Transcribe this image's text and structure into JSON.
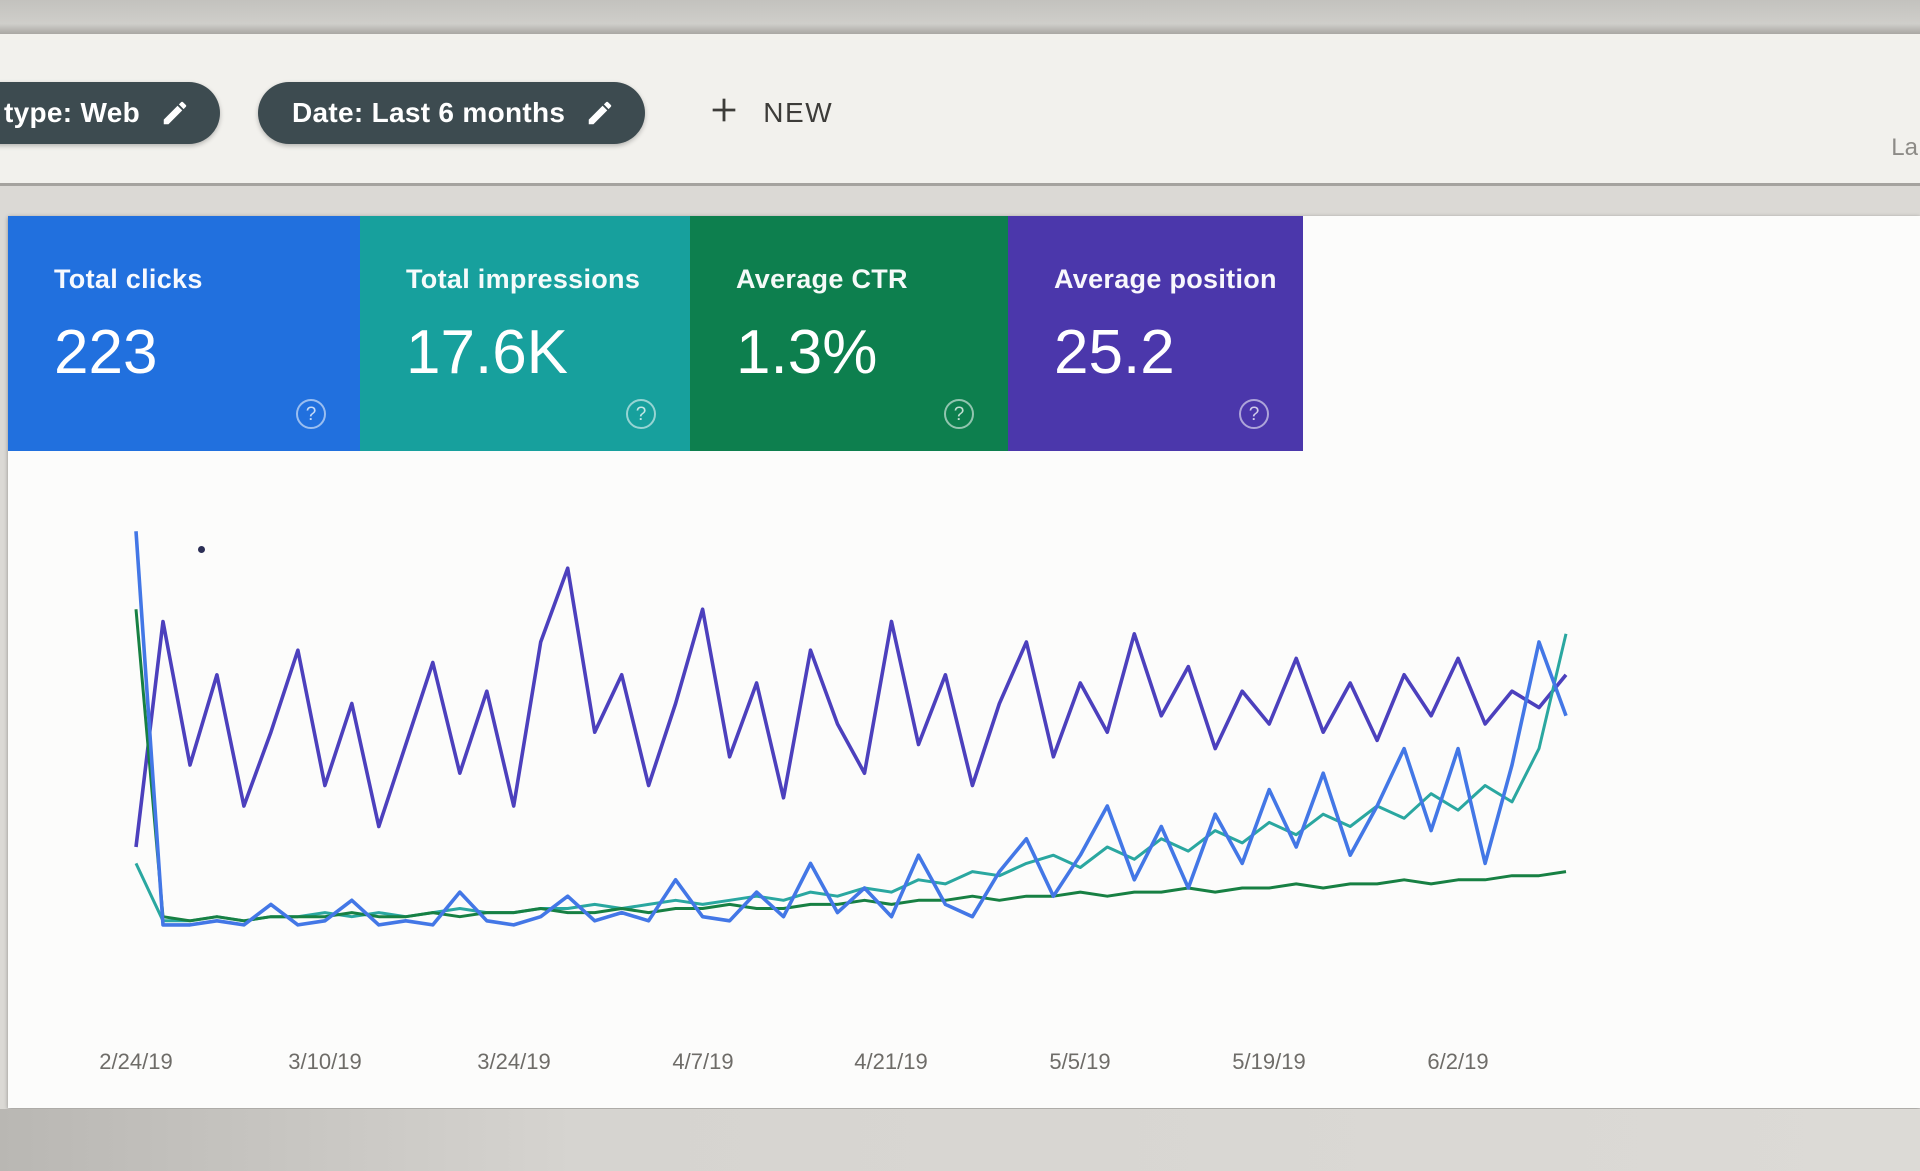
{
  "header": {
    "filter_chips": [
      {
        "label": "type: Web"
      },
      {
        "label": "Date: Last 6 months"
      }
    ],
    "new_button_label": "NEW",
    "right_text_partial": "La"
  },
  "metric_cards": [
    {
      "id": "total-clicks",
      "label": "Total clicks",
      "value": "223",
      "color": "#2170de",
      "help": "?"
    },
    {
      "id": "total-impressions",
      "label": "Total impressions",
      "value": "17.6K",
      "color": "#17a09d",
      "help": "?"
    },
    {
      "id": "average-ctr",
      "label": "Average CTR",
      "value": "1.3%",
      "color": "#0d7f4e",
      "help": "?"
    },
    {
      "id": "average-position",
      "label": "Average position",
      "value": "25.2",
      "color": "#4b37ab",
      "help": "?"
    }
  ],
  "chart_data": {
    "type": "line",
    "x_tick_labels": [
      "2/24/19",
      "3/10/19",
      "3/24/19",
      "4/7/19",
      "4/21/19",
      "5/5/19",
      "5/19/19",
      "6/2/19"
    ],
    "x_tick_indices": [
      0,
      7,
      14,
      21,
      28,
      35,
      42,
      49
    ],
    "ylim": [
      0,
      100
    ],
    "grid": false,
    "legend_position": "none (colored metric cards act as legend)",
    "series": [
      {
        "name": "Clicks",
        "color": "#4377e6",
        "values": [
          97,
          1,
          1,
          2,
          1,
          6,
          1,
          2,
          7,
          1,
          2,
          1,
          9,
          2,
          1,
          3,
          8,
          2,
          4,
          2,
          12,
          3,
          2,
          9,
          3,
          16,
          4,
          10,
          3,
          18,
          6,
          3,
          14,
          22,
          8,
          18,
          30,
          12,
          25,
          10,
          28,
          16,
          34,
          20,
          38,
          18,
          30,
          44,
          24,
          44,
          16,
          40,
          70,
          52
        ]
      },
      {
        "name": "Impressions",
        "color": "#2aa7a0",
        "values": [
          16,
          2,
          2,
          3,
          2,
          3,
          3,
          4,
          3,
          4,
          3,
          4,
          5,
          4,
          4,
          5,
          5,
          6,
          5,
          6,
          7,
          6,
          7,
          8,
          7,
          9,
          8,
          10,
          9,
          12,
          11,
          14,
          13,
          16,
          18,
          15,
          20,
          17,
          22,
          19,
          24,
          21,
          26,
          23,
          28,
          25,
          30,
          27,
          33,
          29,
          35,
          31,
          44,
          72
        ]
      },
      {
        "name": "CTR",
        "color": "#178043",
        "values": [
          78,
          3,
          2,
          3,
          2,
          3,
          3,
          3,
          4,
          3,
          3,
          4,
          3,
          4,
          4,
          5,
          4,
          4,
          5,
          4,
          5,
          5,
          6,
          5,
          5,
          6,
          6,
          7,
          6,
          7,
          7,
          8,
          7,
          8,
          8,
          9,
          8,
          9,
          9,
          10,
          9,
          10,
          10,
          11,
          10,
          11,
          11,
          12,
          11,
          12,
          12,
          13,
          13,
          14
        ]
      },
      {
        "name": "Position",
        "color": "#4c40bd",
        "values": [
          20,
          75,
          40,
          62,
          30,
          48,
          68,
          35,
          55,
          25,
          45,
          65,
          38,
          58,
          30,
          70,
          88,
          48,
          62,
          35,
          55,
          78,
          42,
          60,
          32,
          68,
          50,
          38,
          75,
          45,
          62,
          35,
          55,
          70,
          42,
          60,
          48,
          72,
          52,
          64,
          44,
          58,
          50,
          66,
          48,
          60,
          46,
          62,
          52,
          66,
          50,
          58,
          54,
          62
        ]
      }
    ]
  }
}
